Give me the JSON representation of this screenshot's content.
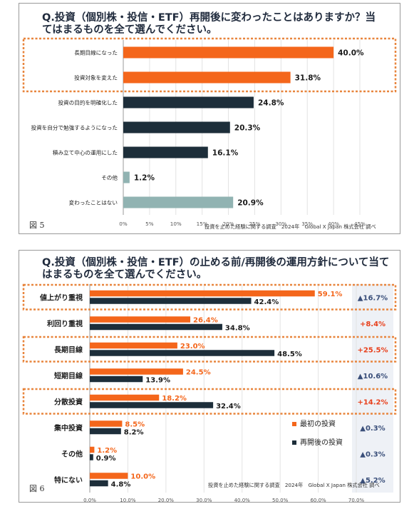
{
  "colors": {
    "highlight": "#f4661b",
    "dark": "#1d2e3a",
    "gray": "#91b3b2",
    "highlight_border": "#e8853d",
    "positive": "#e8401c",
    "neutral": "#3a4f7a",
    "delta_bg": "#eef1f6"
  },
  "chart_data": [
    {
      "type": "bar",
      "orientation": "horizontal",
      "title": "Q.投資（個別株・投信・ETF）再開後に変わったことはありますか？当てはまるものを全て選んでください。",
      "figure_label": "図 5",
      "source": "投資を止めた経験に関する調査　2024年　Global X Japan 株式会社 調べ",
      "categories": [
        "長期目線になった",
        "投資対象を変えた",
        "投資の目的を明確化した",
        "投資を自分で勉強するようになった",
        "積み立て中心の運用にした",
        "その他",
        "変わったことはない"
      ],
      "values": [
        40.0,
        31.8,
        24.8,
        20.3,
        16.1,
        1.2,
        20.9
      ],
      "value_labels": [
        "40.0%",
        "31.8%",
        "24.8%",
        "20.3%",
        "16.1%",
        "1.2%",
        "20.9%"
      ],
      "bar_colors": [
        "#f4661b",
        "#f4661b",
        "#1d2e3a",
        "#1d2e3a",
        "#1d2e3a",
        "#91b3b2",
        "#91b3b2"
      ],
      "highlighted": [
        0,
        1
      ],
      "xlim": [
        0,
        45
      ],
      "xticks": [
        "0%",
        "5%",
        "10%",
        "15%",
        "20%",
        "25%",
        "30%",
        "35%",
        "40%",
        "45%"
      ]
    },
    {
      "type": "bar",
      "orientation": "horizontal",
      "title": "Q.投資（個別株・投信・ETF）の止める前/再開後の運用方針について当てはまるものを全て選んでください。",
      "figure_label": "図 6",
      "source": "投資を止めた経験に関する調査　2024年　Global X Japan 株式会社 調べ",
      "categories": [
        "値上がり重視",
        "利回り重視",
        "長期目線",
        "短期目線",
        "分散投資",
        "集中投資",
        "その他",
        "特にない"
      ],
      "series": [
        {
          "name": "最初の投資",
          "values": [
            59.1,
            26.4,
            23.0,
            24.5,
            18.2,
            8.5,
            1.2,
            10.0
          ],
          "labels": [
            "59.1%",
            "26.4%",
            "23.0%",
            "24.5%",
            "18.2%",
            "8.5%",
            "1.2%",
            "10.0%"
          ]
        },
        {
          "name": "再開後の投資",
          "values": [
            42.4,
            34.8,
            48.5,
            13.9,
            32.4,
            8.2,
            0.9,
            4.8
          ],
          "labels": [
            "42.4%",
            "34.8%",
            "48.5%",
            "13.9%",
            "32.4%",
            "8.2%",
            "0.9%",
            "4.8%"
          ]
        }
      ],
      "differences": [
        "▲16.7%",
        "+8.4%",
        "+25.5%",
        "▲10.6%",
        "+14.2%",
        "▲0.3%",
        "▲0.3%",
        "▲5.2%"
      ],
      "difference_positive": [
        false,
        true,
        true,
        false,
        true,
        false,
        false,
        false
      ],
      "highlighted": [
        0,
        2,
        4
      ],
      "xlim": [
        0,
        70
      ],
      "xticks": [
        "0.0%",
        "10.0%",
        "20.0%",
        "30.0%",
        "40.0%",
        "50.0%",
        "60.0%",
        "70.0%"
      ],
      "legend_position": "right"
    }
  ]
}
